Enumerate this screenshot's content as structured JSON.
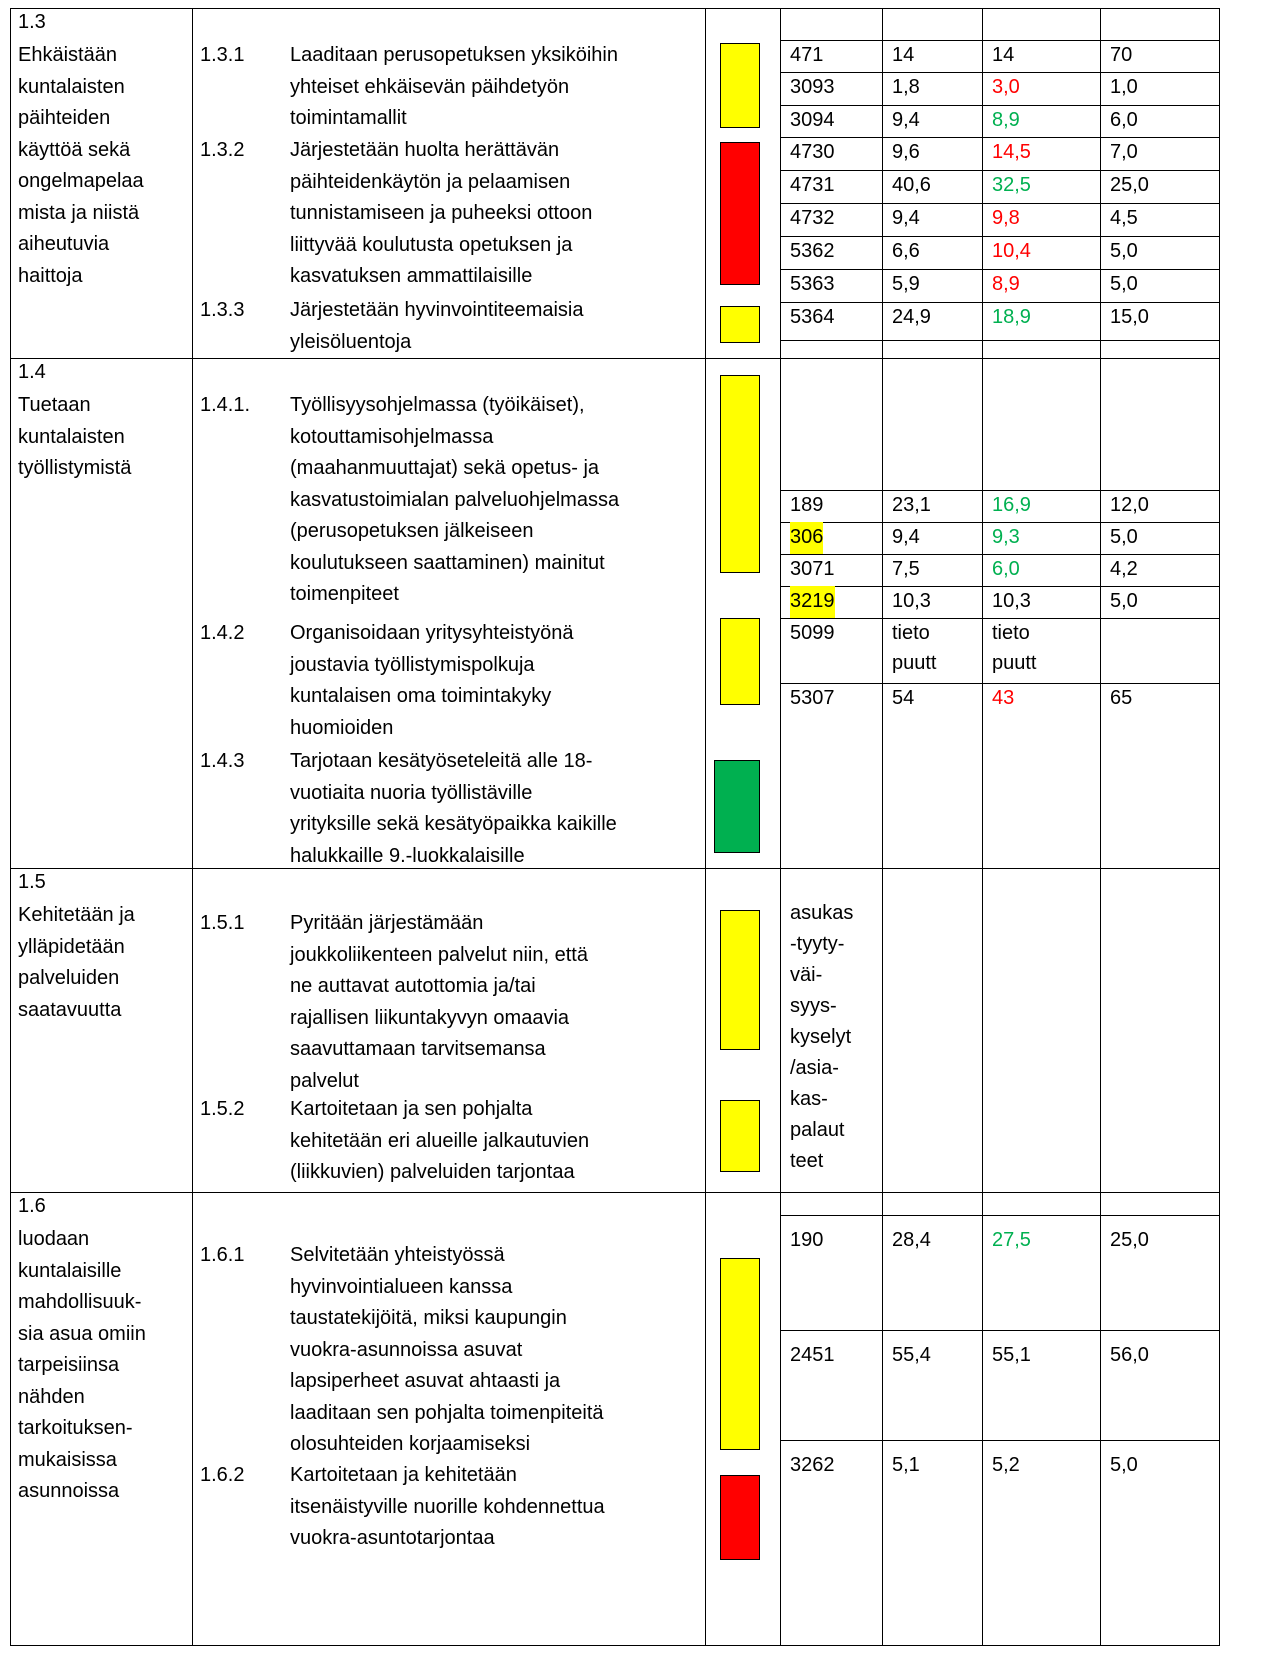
{
  "sections": [
    {
      "number": "1.3",
      "goal_lines": [
        "Ehkäistään",
        "kuntalaisten",
        "päihteiden",
        "käyttöä sekä",
        "ongelmapelaa",
        "mista ja niistä",
        "aiheutuvia",
        "haittoja"
      ],
      "measures": [
        {
          "id": "1.3.1",
          "lines": [
            "Laaditaan perusopetuksen yksiköihin",
            "yhteiset ehkäisevän päihdetyön",
            "toimintamallit"
          ],
          "status_color": "#ffff00"
        },
        {
          "id": "1.3.2",
          "lines": [
            "Järjestetään huolta herättävän",
            "päihteidenkäytön ja pelaamisen",
            "tunnistamiseen ja puheeksi ottoon",
            "liittyvää koulutusta opetuksen ja",
            "kasvatuksen ammattilaisille"
          ],
          "status_color": "#ff0000"
        },
        {
          "id": "1.3.3",
          "lines": [
            "Järjestetään hyvinvointiteemaisia",
            "yleisöluentoja"
          ],
          "status_color": "#ffff00"
        }
      ],
      "indicators": [
        {
          "id": "471",
          "values": [
            "14",
            "14",
            "70"
          ]
        },
        {
          "id": "3093",
          "values": [
            "1,8",
            "3,0",
            "1,0"
          ],
          "trend_color": "#ff0000"
        },
        {
          "id": "3094",
          "values": [
            "9,4",
            "8,9",
            "6,0"
          ],
          "trend_color": "#00b050"
        },
        {
          "id": "4730",
          "values": [
            "9,6",
            "14,5",
            "7,0"
          ],
          "trend_color": "#ff0000"
        },
        {
          "id": "4731",
          "values": [
            "40,6",
            "32,5",
            "25,0"
          ],
          "trend_color": "#00b050"
        },
        {
          "id": "4732",
          "values": [
            "9,4",
            "9,8",
            "4,5"
          ],
          "trend_color": "#ff0000"
        },
        {
          "id": "5362",
          "values": [
            "6,6",
            "10,4",
            "5,0"
          ],
          "trend_color": "#ff0000"
        },
        {
          "id": "5363",
          "values": [
            "5,9",
            "8,9",
            "5,0"
          ],
          "trend_color": "#ff0000"
        },
        {
          "id": "5364",
          "values": [
            "24,9",
            "18,9",
            "15,0"
          ],
          "trend_color": "#00b050"
        }
      ]
    },
    {
      "number": "1.4",
      "goal_lines": [
        "Tuetaan",
        "kuntalaisten",
        "työllistymistä"
      ],
      "measures": [
        {
          "id": "1.4.1.",
          "lines": [
            "Työllisyysohjelmassa (työikäiset),",
            "kotouttamisohjelmassa",
            "(maahanmuuttajat) sekä opetus- ja",
            "kasvatustoimialan palveluohjelmassa",
            "(perusopetuksen jälkeiseen",
            "koulutukseen saattaminen) mainitut",
            "toimenpiteet"
          ],
          "status_color": "#ffff00"
        },
        {
          "id": "1.4.2",
          "lines": [
            "Organisoidaan yritysyhteistyönä",
            "joustavia työllistymispolkuja",
            "kuntalaisen oma toimintakyky",
            "huomioiden"
          ],
          "status_color": "#ffff00"
        },
        {
          "id": "1.4.3",
          "lines": [
            "Tarjotaan kesätyöseteleitä alle 18-",
            "vuotiaita nuoria työllistäville",
            "yrityksille sekä kesätyöpaikka kaikille",
            "halukkaille 9.-luokkalaisille"
          ],
          "status_color": "#00b050"
        }
      ],
      "indicators": [
        {
          "id": "189",
          "values": [
            "23,1",
            "16,9",
            "12,0"
          ],
          "trend_color": "#00b050"
        },
        {
          "id": "306",
          "values": [
            "9,4",
            "9,3",
            "5,0"
          ],
          "trend_color": "#00b050",
          "id_highlight": "#ffff00"
        },
        {
          "id": "3071",
          "values": [
            "7,5",
            "6,0",
            "4,2"
          ],
          "trend_color": "#00b050"
        },
        {
          "id": "3219",
          "values": [
            "10,3",
            "10,3",
            "5,0"
          ],
          "id_highlight": "#ffff00"
        },
        {
          "id": "5099",
          "values": [
            "tieto puutt",
            "tieto puutt"
          ]
        },
        {
          "id": "5307",
          "values": [
            "54",
            "43",
            "65"
          ],
          "trend_color": "#ff0000"
        }
      ]
    },
    {
      "number": "1.5",
      "goal_lines": [
        "Kehitetään ja",
        "ylläpidetään",
        "palveluiden",
        "saatavuutta"
      ],
      "measures": [
        {
          "id": "1.5.1",
          "lines": [
            "Pyritään järjestämään",
            "joukkoliikenteen palvelut niin, että",
            "ne auttavat autottomia ja/tai",
            "rajallisen liikuntakyvyn omaavia",
            "saavuttamaan tarvitsemansa",
            "palvelut"
          ],
          "status_color": "#ffff00"
        },
        {
          "id": "1.5.2",
          "lines": [
            "Kartoitetaan ja sen pohjalta",
            "kehitetään eri alueille jalkautuvien",
            "(liikkuvien) palveluiden tarjontaa"
          ],
          "status_color": "#ffff00"
        }
      ],
      "indicator_note": [
        "asukas",
        "-tyyty-",
        "väi-",
        "syys-",
        "kyselyt",
        "/asia-",
        "kas-",
        "palaut",
        "teet"
      ]
    },
    {
      "number": "1.6",
      "goal_lines": [
        "luodaan",
        "kuntalaisille",
        "mahdollisuuk-",
        "sia asua omiin",
        "tarpeisiinsa",
        "nähden",
        "tarkoituksen-",
        "mukaisissa",
        "asunnoissa"
      ],
      "measures": [
        {
          "id": "1.6.1",
          "lines": [
            "Selvitetään yhteistyössä",
            "hyvinvointialueen kanssa",
            "taustatekijöitä, miksi kaupungin",
            "vuokra-asunnoissa asuvat",
            "lapsiperheet asuvat ahtaasti ja",
            "laaditaan sen pohjalta toimenpiteitä",
            "olosuhteiden korjaamiseksi"
          ],
          "status_color": "#ffff00"
        },
        {
          "id": "1.6.2",
          "lines": [
            "Kartoitetaan ja kehitetään",
            "itsenäistyville nuorille kohdennettua",
            "vuokra-asuntotarjontaa"
          ],
          "status_color": "#ff0000"
        }
      ],
      "indicators": [
        {
          "id": "190",
          "values": [
            "28,4",
            "27,5",
            "25,0"
          ],
          "trend_color": "#00b050"
        },
        {
          "id": "2451",
          "values": [
            "55,4",
            "55,1",
            "56,0"
          ]
        },
        {
          "id": "3262",
          "values": [
            "5,1",
            "5,2",
            "5,0"
          ]
        }
      ]
    }
  ]
}
